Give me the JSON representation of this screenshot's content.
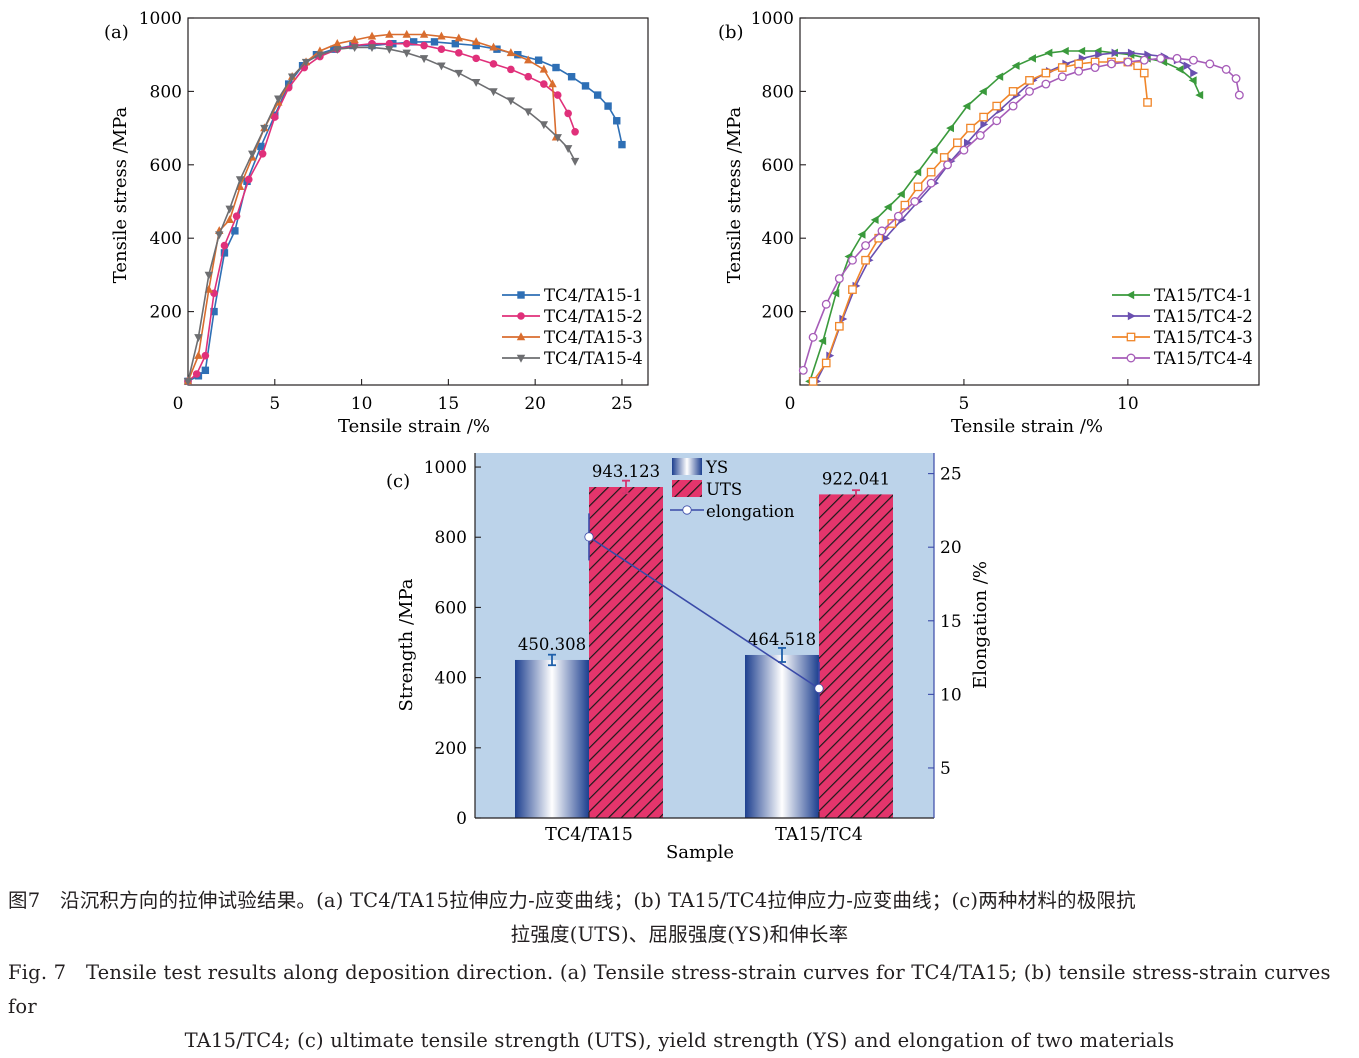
{
  "chart_data": [
    {
      "panel_label": "(a)",
      "type": "line",
      "xlabel": "Tensile strain /%",
      "ylabel": "Tensile stress /MPa",
      "xlim": [
        0,
        26.5
      ],
      "ylim": [
        0,
        1000
      ],
      "xticks": [
        0,
        5,
        10,
        15,
        20,
        25
      ],
      "yticks": [
        200,
        400,
        600,
        800,
        1000
      ],
      "grid": false,
      "legend_position": "bottom-right",
      "series": [
        {
          "name": "TC4/TA15-1",
          "color": "#2e6fb5",
          "marker": "square",
          "x": [
            0,
            0.6,
            1.0,
            1.5,
            2.1,
            2.7,
            3.4,
            4.2,
            5.0,
            5.8,
            6.6,
            7.4,
            8.4,
            9.5,
            10.6,
            11.8,
            13.0,
            14.2,
            15.4,
            16.6,
            17.8,
            19.0,
            20.2,
            21.2,
            22.1,
            22.9,
            23.6,
            24.2,
            24.7,
            25.0
          ],
          "y": [
            10,
            25,
            40,
            200,
            360,
            420,
            555,
            650,
            735,
            820,
            870,
            900,
            915,
            925,
            925,
            930,
            935,
            935,
            930,
            925,
            915,
            900,
            885,
            865,
            840,
            815,
            790,
            760,
            720,
            655
          ]
        },
        {
          "name": "TC4/TA15-2",
          "color": "#e0307a",
          "marker": "circle",
          "x": [
            0,
            0.5,
            1.0,
            1.5,
            2.1,
            2.8,
            3.5,
            4.3,
            5.0,
            5.8,
            6.7,
            7.6,
            8.6,
            9.6,
            10.6,
            11.6,
            12.6,
            13.6,
            14.6,
            15.6,
            16.6,
            17.6,
            18.6,
            19.6,
            20.5,
            21.3,
            21.9,
            22.3
          ],
          "y": [
            10,
            30,
            80,
            250,
            380,
            460,
            560,
            630,
            730,
            810,
            865,
            895,
            915,
            925,
            930,
            930,
            930,
            925,
            915,
            905,
            890,
            875,
            860,
            840,
            820,
            790,
            740,
            690
          ]
        },
        {
          "name": "TC4/TA15-3",
          "color": "#d96d2f",
          "marker": "triangle-up",
          "x": [
            0,
            0.6,
            1.2,
            1.8,
            2.4,
            3.0,
            3.7,
            4.4,
            5.2,
            6.0,
            6.8,
            7.6,
            8.6,
            9.6,
            10.6,
            11.6,
            12.6,
            13.6,
            14.6,
            15.6,
            16.6,
            17.6,
            18.6,
            19.6,
            20.5,
            21.0,
            21.2
          ],
          "y": [
            10,
            80,
            260,
            420,
            450,
            540,
            620,
            700,
            770,
            840,
            880,
            910,
            930,
            940,
            950,
            955,
            955,
            955,
            950,
            945,
            935,
            920,
            905,
            885,
            860,
            820,
            675
          ]
        },
        {
          "name": "TC4/TA15-4",
          "color": "#6d6e71",
          "marker": "triangle-down",
          "x": [
            0,
            0.6,
            1.2,
            1.8,
            2.4,
            3.0,
            3.7,
            4.4,
            5.2,
            6.0,
            6.8,
            7.6,
            8.6,
            9.6,
            10.6,
            11.6,
            12.6,
            13.6,
            14.6,
            15.6,
            16.6,
            17.6,
            18.6,
            19.6,
            20.5,
            21.3,
            21.9,
            22.3
          ],
          "y": [
            10,
            130,
            300,
            410,
            480,
            560,
            630,
            700,
            780,
            840,
            880,
            900,
            915,
            920,
            920,
            915,
            905,
            890,
            870,
            850,
            825,
            800,
            775,
            745,
            710,
            675,
            645,
            610
          ]
        }
      ]
    },
    {
      "panel_label": "(b)",
      "type": "line",
      "xlabel": "Tensile strain /%",
      "ylabel": "Tensile stress /MPa",
      "xlim": [
        0,
        14
      ],
      "ylim": [
        0,
        1000
      ],
      "xticks": [
        0,
        5,
        10
      ],
      "yticks": [
        200,
        400,
        600,
        800,
        1000
      ],
      "grid": false,
      "legend_position": "bottom-right",
      "series": [
        {
          "name": "TA15/TC4-1",
          "color": "#3a9a3c",
          "marker": "triangle-left",
          "x": [
            0.3,
            0.7,
            1.1,
            1.5,
            1.9,
            2.3,
            2.7,
            3.1,
            3.6,
            4.1,
            4.6,
            5.1,
            5.6,
            6.1,
            6.6,
            7.1,
            7.6,
            8.1,
            8.6,
            9.1,
            9.6,
            10.1,
            10.6,
            11.1,
            11.6,
            12.0,
            12.2
          ],
          "y": [
            10,
            120,
            250,
            350,
            410,
            450,
            485,
            520,
            580,
            640,
            700,
            760,
            800,
            840,
            870,
            890,
            905,
            910,
            910,
            910,
            905,
            900,
            890,
            880,
            860,
            830,
            790
          ]
        },
        {
          "name": "TA15/TC4-2",
          "color": "#6a4fb0",
          "marker": "triangle-right",
          "x": [
            0.5,
            0.9,
            1.3,
            1.7,
            2.1,
            2.6,
            3.1,
            3.6,
            4.1,
            4.6,
            5.1,
            5.6,
            6.1,
            6.6,
            7.1,
            7.6,
            8.1,
            8.6,
            9.1,
            9.6,
            10.1,
            10.6,
            11.1,
            11.5,
            11.8,
            12.0
          ],
          "y": [
            10,
            80,
            180,
            270,
            340,
            400,
            450,
            500,
            550,
            610,
            660,
            710,
            750,
            790,
            830,
            855,
            875,
            890,
            900,
            905,
            905,
            900,
            895,
            885,
            870,
            850
          ]
        },
        {
          "name": "TA15/TC4-3",
          "color": "#f0862a",
          "marker": "square-open",
          "x": [
            0.4,
            0.8,
            1.2,
            1.6,
            2.0,
            2.4,
            2.8,
            3.2,
            3.6,
            4.0,
            4.4,
            4.8,
            5.2,
            5.6,
            6.0,
            6.5,
            7.0,
            7.5,
            8.0,
            8.5,
            9.0,
            9.5,
            10.0,
            10.3,
            10.5,
            10.6
          ],
          "y": [
            10,
            60,
            160,
            260,
            340,
            400,
            440,
            490,
            540,
            580,
            620,
            660,
            700,
            730,
            760,
            800,
            830,
            850,
            865,
            875,
            880,
            880,
            880,
            870,
            850,
            770
          ]
        },
        {
          "name": "TA15/TC4-4",
          "color": "#a65cb8",
          "marker": "circle-open",
          "x": [
            0.1,
            0.4,
            0.8,
            1.2,
            1.6,
            2.0,
            2.5,
            3.0,
            3.5,
            4.0,
            4.5,
            5.0,
            5.5,
            6.0,
            6.5,
            7.0,
            7.5,
            8.0,
            8.5,
            9.0,
            9.5,
            10.0,
            10.5,
            11.0,
            11.5,
            12.0,
            12.5,
            13.0,
            13.3,
            13.4
          ],
          "y": [
            40,
            130,
            220,
            290,
            340,
            380,
            420,
            460,
            500,
            550,
            600,
            640,
            680,
            720,
            760,
            800,
            820,
            840,
            855,
            865,
            875,
            880,
            885,
            890,
            890,
            885,
            875,
            860,
            835,
            790
          ]
        }
      ]
    },
    {
      "panel_label": "(c)",
      "type": "bar",
      "categories": [
        "TC4/TA15",
        "TA15/TC4"
      ],
      "xlabel": "Sample",
      "ylabel": "Strength /MPa",
      "y2label": "Elongation /%",
      "ylim": [
        0,
        1040
      ],
      "y2lim": [
        1.6,
        26.4
      ],
      "yticks": [
        0,
        200,
        400,
        600,
        800,
        1000
      ],
      "y2ticks": [
        5,
        10,
        15,
        20,
        25
      ],
      "grid": false,
      "legend_position": "top-center",
      "background": "#bcd3ea",
      "series": [
        {
          "name": "YS",
          "values": [
            450.308,
            464.518
          ],
          "value_labels": [
            "450.308",
            "464.518"
          ],
          "error": [
            15,
            20
          ],
          "error_color": "#1f5faa"
        },
        {
          "name": "UTS",
          "values": [
            943.123,
            922.041
          ],
          "value_labels": [
            "943.123",
            "922.041"
          ],
          "error": [
            18,
            12
          ],
          "error_color": "#d6336e"
        },
        {
          "name": "elongation",
          "axis": "right",
          "values": [
            20.7,
            10.4
          ],
          "error": [
            1.6,
            1.8
          ],
          "color": "#3a4aa8"
        }
      ]
    }
  ],
  "caption": {
    "zh_line1": "图7　沿沉积方向的拉伸试验结果。(a) TC4/TA15拉伸应力-应变曲线；(b) TA15/TC4拉伸应力-应变曲线；(c)两种材料的极限抗",
    "zh_line2": "拉强度(UTS)、屈服强度(YS)和伸长率",
    "en_line1": "Fig. 7　Tensile test results along deposition direction. (a) Tensile stress-strain curves for TC4/TA15; (b) tensile stress-strain curves for",
    "en_line2": "TA15/TC4; (c) ultimate tensile strength (UTS), yield strength (YS) and elongation of two materials"
  }
}
